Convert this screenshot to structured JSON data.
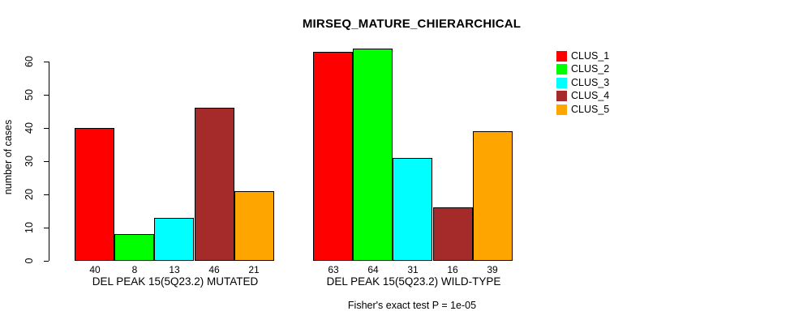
{
  "chart_data": {
    "type": "bar",
    "title": "MIRSEQ_MATURE_CHIERARCHICAL",
    "ylabel": "number of cases",
    "xlabel": "",
    "ylim": [
      0,
      60
    ],
    "yticks": [
      0,
      10,
      20,
      30,
      40,
      50,
      60
    ],
    "grid": false,
    "legend_position": "top-right",
    "series_colors": [
      "#ff0000",
      "#00ff00",
      "#00ffff",
      "#a52a2a",
      "#ffa500"
    ],
    "groups": [
      {
        "label": "DEL PEAK 15(5Q23.2) MUTATED",
        "values": [
          40,
          8,
          13,
          46,
          21
        ]
      },
      {
        "label": "DEL PEAK 15(5Q23.2) WILD-TYPE",
        "values": [
          63,
          64,
          31,
          16,
          39
        ]
      }
    ],
    "legend": [
      {
        "label": "CLUS_1",
        "color": "#ff0000"
      },
      {
        "label": "CLUS_2",
        "color": "#00ff00"
      },
      {
        "label": "CLUS_3",
        "color": "#00ffff"
      },
      {
        "label": "CLUS_4",
        "color": "#a52a2a"
      },
      {
        "label": "CLUS_5",
        "color": "#ffa500"
      }
    ],
    "footnote": "Fisher's exact test P = 1e-05"
  }
}
